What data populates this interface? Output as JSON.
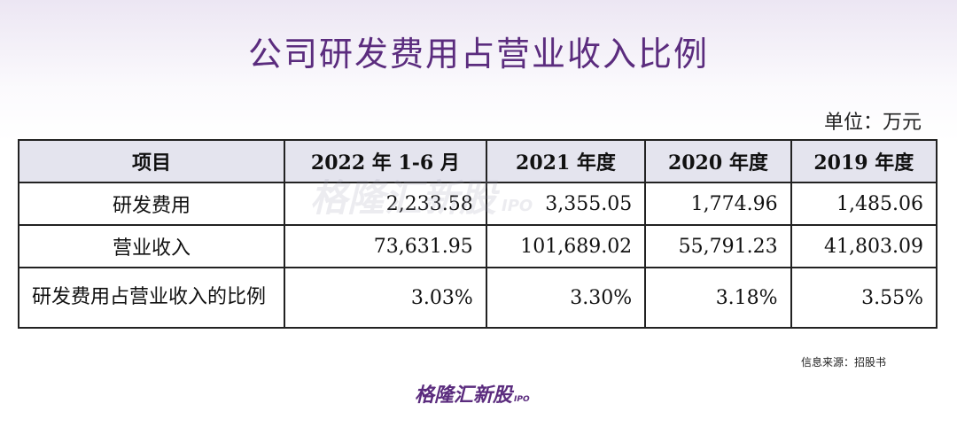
{
  "header": {
    "title": "公司研发费用占营业收入比例",
    "unit": "单位：万元"
  },
  "table": {
    "columns": [
      "项目",
      "2022 年 1-6 月",
      "2021 年度",
      "2020 年度",
      "2019 年度"
    ],
    "rows": [
      [
        "研发费用",
        "2,233.58",
        "3,355.05",
        "1,774.96",
        "1,485.06"
      ],
      [
        "营业收入",
        "73,631.95",
        "101,689.02",
        "55,791.23",
        "41,803.09"
      ],
      [
        "研发费用占营业收入的比例",
        "3.03%",
        "3.30%",
        "3.18%",
        "3.55%"
      ]
    ]
  },
  "footer": {
    "source": "信息来源：招股书",
    "logo": "格隆汇新股",
    "logo_tag": "IPO"
  },
  "watermark": {
    "text": "格隆汇新股",
    "tag": "IPO"
  }
}
